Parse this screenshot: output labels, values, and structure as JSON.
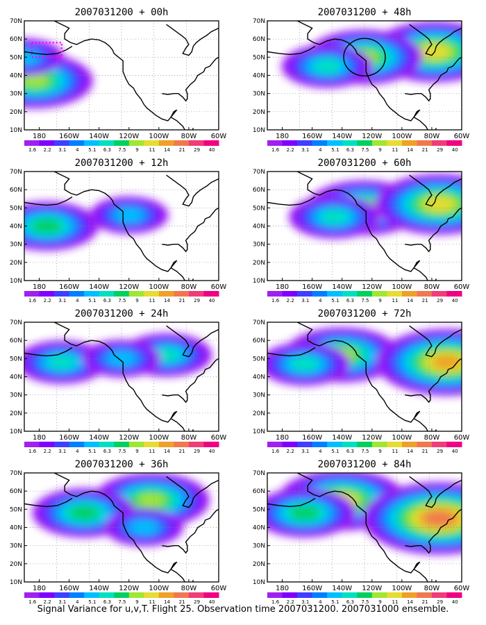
{
  "figure": {
    "caption": "Signal Variance for u,v,T. Flight 25. Observation time 2007031200. 2007031000 ensemble."
  },
  "colorbar": {
    "labels": [
      "1.6",
      "2.2",
      "3.1",
      "4",
      "5.1",
      "6.3",
      "7.5",
      "9",
      "11",
      "14",
      "21",
      "29",
      "40"
    ],
    "colors": [
      "#a020f0",
      "#7f00ff",
      "#3f3fff",
      "#007fff",
      "#00bfff",
      "#00e0c0",
      "#00d060",
      "#a0e632",
      "#e6dc32",
      "#f0a028",
      "#f07850",
      "#f03c78",
      "#f00082"
    ]
  },
  "chart_data": [
    {
      "type": "heatmap",
      "title": "2007031200 + 00h",
      "xticks": [
        "180",
        "160W",
        "140W",
        "120W",
        "100W",
        "80W",
        "60W"
      ],
      "yticks": [
        "10N",
        "20N",
        "30N",
        "40N",
        "50N",
        "60N",
        "70N"
      ],
      "xlim": [
        "170E",
        "60W"
      ],
      "ylim": [
        "10N",
        "70N"
      ],
      "grid": true,
      "annotations": [
        "dotted magenta box near 50-58N, 180-165W"
      ],
      "maxima": [
        {
          "lat": 37,
          "lon": "177E",
          "level": 7
        },
        {
          "lat": 50,
          "lon": "170E",
          "level": 4
        }
      ]
    },
    {
      "type": "heatmap",
      "title": "2007031200 + 48h",
      "xticks": [
        "180",
        "160W",
        "140W",
        "120W",
        "100W",
        "80W",
        "60W"
      ],
      "yticks": [
        "10N",
        "20N",
        "30N",
        "40N",
        "50N",
        "60N",
        "70N"
      ],
      "xlim": [
        "170E",
        "60W"
      ],
      "ylim": [
        "10N",
        "70N"
      ],
      "grid": true,
      "annotations": [
        "black circle near 50N, 125W"
      ],
      "maxima": [
        {
          "lat": 53,
          "lon": "78W",
          "level": 8
        },
        {
          "lat": 50,
          "lon": "125W",
          "level": 7
        },
        {
          "lat": 45,
          "lon": "150W",
          "level": 5
        }
      ]
    },
    {
      "type": "heatmap",
      "title": "2007031200 + 12h",
      "xticks": [
        "180",
        "160W",
        "140W",
        "120W",
        "100W",
        "80W",
        "60W"
      ],
      "yticks": [
        "10N",
        "20N",
        "30N",
        "40N",
        "50N",
        "60N",
        "70N"
      ],
      "xlim": [
        "170E",
        "60W"
      ],
      "ylim": [
        "10N",
        "70N"
      ],
      "grid": true,
      "maxima": [
        {
          "lat": 40,
          "lon": "175W",
          "level": 6
        },
        {
          "lat": 46,
          "lon": "120W",
          "level": 4
        }
      ]
    },
    {
      "type": "heatmap",
      "title": "2007031200 + 60h",
      "xticks": [
        "180",
        "160W",
        "140W",
        "120W",
        "100W",
        "80W",
        "60W"
      ],
      "yticks": [
        "10N",
        "20N",
        "30N",
        "40N",
        "50N",
        "60N",
        "70N"
      ],
      "xlim": [
        "170E",
        "60W"
      ],
      "ylim": [
        "10N",
        "70N"
      ],
      "grid": true,
      "maxima": [
        {
          "lat": 50,
          "lon": "125W",
          "level": 7
        },
        {
          "lat": 52,
          "lon": "75W",
          "level": 8
        },
        {
          "lat": 45,
          "lon": "145W",
          "level": 5
        }
      ]
    },
    {
      "type": "heatmap",
      "title": "2007031200 + 24h",
      "xticks": [
        "180",
        "160W",
        "140W",
        "120W",
        "100W",
        "80W",
        "60W"
      ],
      "yticks": [
        "10N",
        "20N",
        "30N",
        "40N",
        "50N",
        "60N",
        "70N"
      ],
      "xlim": [
        "170E",
        "60W"
      ],
      "ylim": [
        "10N",
        "70N"
      ],
      "grid": true,
      "maxima": [
        {
          "lat": 52,
          "lon": "95W",
          "level": 5
        },
        {
          "lat": 48,
          "lon": "165W",
          "level": 5
        },
        {
          "lat": 50,
          "lon": "125W",
          "level": 4
        }
      ]
    },
    {
      "type": "heatmap",
      "title": "2007031200 + 72h",
      "xticks": [
        "180",
        "160W",
        "140W",
        "120W",
        "100W",
        "80W",
        "60W"
      ],
      "yticks": [
        "10N",
        "20N",
        "30N",
        "40N",
        "50N",
        "60N",
        "70N"
      ],
      "xlim": [
        "170E",
        "60W"
      ],
      "ylim": [
        "10N",
        "70N"
      ],
      "grid": true,
      "maxima": [
        {
          "lat": 52,
          "lon": "140W",
          "level": 7
        },
        {
          "lat": 48,
          "lon": "70W",
          "level": 9
        },
        {
          "lat": 47,
          "lon": "165W",
          "level": 5
        }
      ]
    },
    {
      "type": "heatmap",
      "title": "2007031200 + 36h",
      "xticks": [
        "180",
        "160W",
        "140W",
        "120W",
        "100W",
        "80W",
        "60W"
      ],
      "yticks": [
        "10N",
        "20N",
        "30N",
        "40N",
        "50N",
        "60N",
        "70N"
      ],
      "xlim": [
        "170E",
        "60W"
      ],
      "ylim": [
        "10N",
        "70N"
      ],
      "grid": true,
      "maxima": [
        {
          "lat": 55,
          "lon": "105W",
          "level": 7
        },
        {
          "lat": 48,
          "lon": "150W",
          "level": 6
        },
        {
          "lat": 40,
          "lon": "110W",
          "level": 4
        }
      ]
    },
    {
      "type": "heatmap",
      "title": "2007031200 + 84h",
      "xticks": [
        "180",
        "160W",
        "140W",
        "120W",
        "100W",
        "80W",
        "60W"
      ],
      "yticks": [
        "10N",
        "20N",
        "30N",
        "40N",
        "50N",
        "60N",
        "70N"
      ],
      "xlim": [
        "170E",
        "60W"
      ],
      "ylim": [
        "10N",
        "70N"
      ],
      "grid": true,
      "maxima": [
        {
          "lat": 55,
          "lon": "140W",
          "level": 8
        },
        {
          "lat": 45,
          "lon": "75W",
          "level": 10
        },
        {
          "lat": 48,
          "lon": "165W",
          "level": 6
        }
      ]
    }
  ]
}
